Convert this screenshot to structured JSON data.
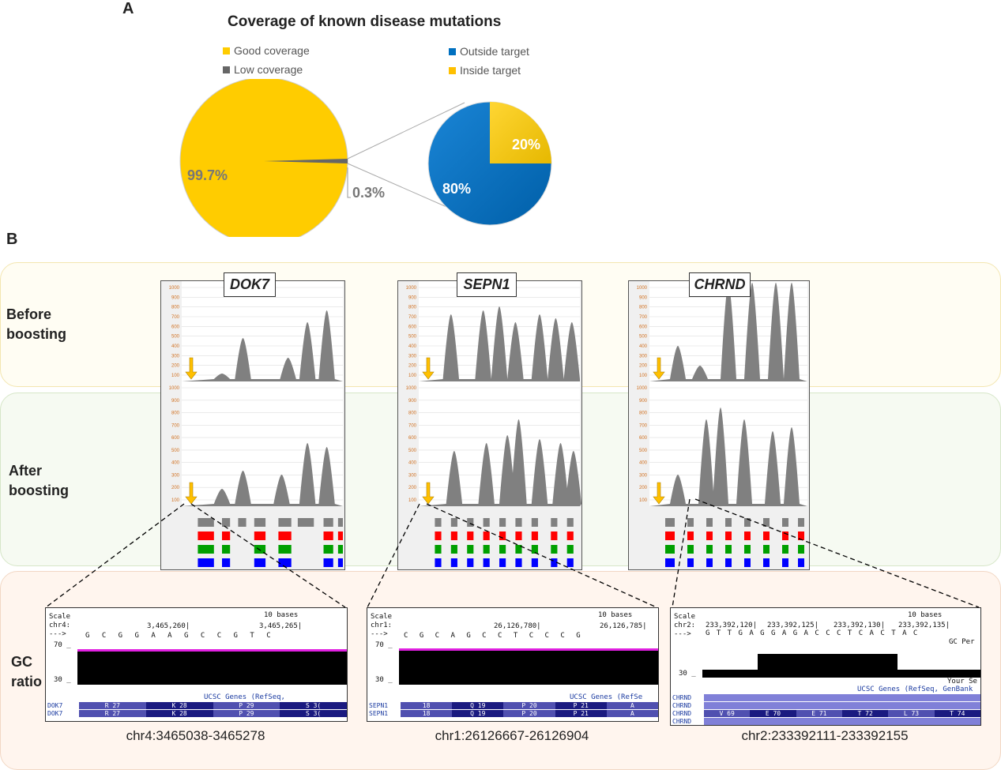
{
  "panel_a": {
    "letter": "A",
    "title": "Coverage of known disease mutations",
    "legend_left": [
      {
        "label": "Good coverage",
        "color": "#FFCC00"
      },
      {
        "label": "Low coverage",
        "color": "#666666"
      }
    ],
    "legend_right": [
      {
        "label": "Outside target",
        "color": "#0070C0"
      },
      {
        "label": "Inside target",
        "color": "#FFC000"
      }
    ],
    "main_pie": {
      "good_label": "99.7%",
      "good_value": 99.7,
      "low_label": "0.3%",
      "low_value": 0.3
    },
    "sub_pie": {
      "outside_label": "80%",
      "outside_value": 80,
      "inside_label": "20%",
      "inside_value": 20
    }
  },
  "panel_b": {
    "letter": "B",
    "rows": {
      "before": "Before\nboosting",
      "after": "After\nboosting",
      "gc": "GC\nratio"
    },
    "y_ticks": [
      "1000",
      "900",
      "800",
      "700",
      "600",
      "500",
      "400",
      "300",
      "200",
      "100"
    ],
    "genes": [
      {
        "name": "DOK7",
        "coord": "chr4:3465038-3465278"
      },
      {
        "name": "SEPN1",
        "coord": "chr1:26126667-26126904"
      },
      {
        "name": "CHRND",
        "coord": "chr2:233392111-233392155"
      }
    ],
    "ucsc": [
      {
        "scale": "Scale",
        "chr": "chr4:",
        "arrow": "--->",
        "bases": "10 bases",
        "pos1": "3,465,260|",
        "pos2": "3,465,265|",
        "seq": "G C G G A A G C C G T C",
        "y_hi": "70 _",
        "y_lo": "30 _",
        "genes_label": "UCSC Genes (RefSeq,",
        "tracks": [
          {
            "name": "DOK7",
            "cells": [
              "R 27",
              "K 28",
              "P 29",
              "S 3("
            ]
          },
          {
            "name": "DOK7",
            "cells": [
              "R 27",
              "K 28",
              "P 29",
              "S 3("
            ]
          }
        ]
      },
      {
        "scale": "Scale",
        "chr": "chr1:",
        "arrow": "--->",
        "bases": "10 bases",
        "pos1": "26,126,780|",
        "pos2": "26,126,785|",
        "seq": "C G C A G C C T C C C G",
        "y_hi": "70 _",
        "y_lo": "30 _",
        "genes_label": "UCSC Genes (RefSe",
        "tracks": [
          {
            "name": "SEPN1",
            "cells": [
              "18",
              "Q 19",
              "P 20",
              "P 21",
              "A"
            ]
          },
          {
            "name": "SEPN1",
            "cells": [
              "18",
              "Q 19",
              "P 20",
              "P 21",
              "A"
            ]
          }
        ]
      },
      {
        "scale": "Scale",
        "chr": "chr2:",
        "arrow": "--->",
        "bases": "10 bases",
        "pos1": "233,392,120|",
        "pos2": "233,392,125|",
        "pos3": "233,392,130|",
        "pos4": "233,392,135|",
        "seq": "G T T G A G G A G A C C C T C A C T A C",
        "gc_label": "GC Per",
        "y_hi": "",
        "y_lo": "30 _",
        "your_label": "Your Se",
        "genes_label": "UCSC Genes (RefSeq, GenBank",
        "tracks": [
          {
            "name": "CHRND",
            "cells": []
          },
          {
            "name": "CHRND",
            "cells": []
          },
          {
            "name": "CHRND",
            "cells": [
              "V 69",
              "E 70",
              "E 71",
              "T 72",
              "L 73",
              "T 74"
            ]
          },
          {
            "name": "CHRND",
            "cells": []
          }
        ]
      }
    ]
  }
}
